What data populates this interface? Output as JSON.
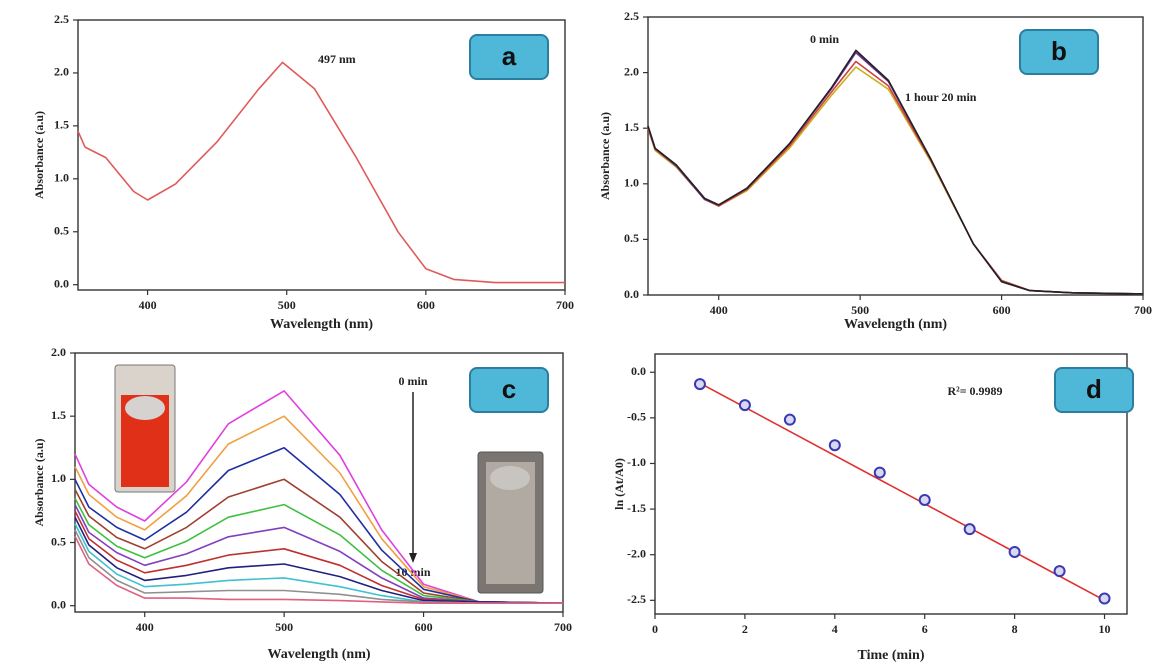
{
  "chart_data": [
    {
      "type": "line",
      "panel_label": "a",
      "x_label": "Wavelength (nm)",
      "y_label": "Absorbance (a.u)",
      "annotations": [
        "497 nm"
      ],
      "x": [
        350,
        355,
        370,
        390,
        400,
        420,
        450,
        480,
        497,
        520,
        550,
        580,
        600,
        620,
        650,
        700
      ],
      "series": [
        {
          "color": "#e05a5a",
          "values": [
            1.45,
            1.3,
            1.2,
            0.88,
            0.8,
            0.95,
            1.35,
            1.85,
            2.1,
            1.85,
            1.2,
            0.5,
            0.15,
            0.05,
            0.02,
            0.02
          ]
        }
      ],
      "xlim": [
        350,
        700
      ],
      "xticks": [
        400,
        500,
        600,
        700
      ],
      "ylim": [
        -0.05,
        2.5
      ],
      "yticks": [
        {
          "value": 0,
          "label": "0.0"
        },
        0.5,
        {
          "value": 1,
          "label": "1.0"
        },
        1.5,
        {
          "value": 2,
          "label": "2.0"
        },
        2.5
      ]
    },
    {
      "type": "line",
      "panel_label": "b",
      "x_label": "Wavelength (nm)",
      "y_label": "Absorbance (a.u)",
      "annotations": [
        "0 min",
        "1 hour 20 min"
      ],
      "x": [
        350,
        355,
        370,
        390,
        400,
        420,
        450,
        480,
        497,
        520,
        550,
        580,
        600,
        620,
        650,
        700
      ],
      "series": [
        {
          "color": "#c8b020",
          "values": [
            1.5,
            1.3,
            1.15,
            0.86,
            0.8,
            0.94,
            1.32,
            1.8,
            2.05,
            1.85,
            1.2,
            0.46,
            0.13,
            0.04,
            0.02,
            0.01
          ]
        },
        {
          "color": "#d04040",
          "values": [
            1.5,
            1.31,
            1.16,
            0.86,
            0.8,
            0.95,
            1.34,
            1.83,
            2.1,
            1.88,
            1.21,
            0.46,
            0.13,
            0.04,
            0.02,
            0.01
          ]
        },
        {
          "color": "#7030a0",
          "values": [
            1.52,
            1.32,
            1.16,
            0.86,
            0.81,
            0.96,
            1.36,
            1.86,
            2.18,
            1.92,
            1.22,
            0.46,
            0.12,
            0.04,
            0.02,
            0.01
          ]
        },
        {
          "color": "#222222",
          "values": [
            1.52,
            1.32,
            1.17,
            0.87,
            0.81,
            0.96,
            1.36,
            1.87,
            2.2,
            1.93,
            1.22,
            0.46,
            0.12,
            0.04,
            0.02,
            0.01
          ]
        }
      ],
      "xlim": [
        350,
        700
      ],
      "xticks": [
        400,
        500,
        600,
        700
      ],
      "ylim": [
        0,
        2.5
      ],
      "yticks": [
        {
          "value": 0,
          "label": "0.0"
        },
        0.5,
        {
          "value": 1,
          "label": "1.0"
        },
        1.5,
        {
          "value": 2,
          "label": "2.0"
        },
        2.5
      ]
    },
    {
      "type": "line",
      "panel_label": "c",
      "x_label": "Wavelength (nm)",
      "y_label": "Absorbance (a.u)",
      "annotations": [
        "0 min",
        "10 min"
      ],
      "x": [
        350,
        360,
        380,
        400,
        430,
        460,
        500,
        540,
        570,
        600,
        640,
        700
      ],
      "series": [
        {
          "color": "#e040e0",
          "values": [
            1.2,
            0.96,
            0.78,
            0.67,
            0.98,
            1.44,
            1.7,
            1.19,
            0.6,
            0.17,
            0.03,
            0.02
          ]
        },
        {
          "color": "#f0a040",
          "values": [
            1.1,
            0.88,
            0.7,
            0.6,
            0.87,
            1.28,
            1.5,
            1.05,
            0.53,
            0.15,
            0.03,
            0.02
          ]
        },
        {
          "color": "#2030a0",
          "values": [
            1.0,
            0.78,
            0.62,
            0.52,
            0.74,
            1.07,
            1.25,
            0.88,
            0.44,
            0.13,
            0.03,
            0.02
          ]
        },
        {
          "color": "#a04030",
          "values": [
            0.92,
            0.71,
            0.54,
            0.45,
            0.62,
            0.86,
            1.0,
            0.7,
            0.35,
            0.1,
            0.03,
            0.02
          ]
        },
        {
          "color": "#40c040",
          "values": [
            0.85,
            0.64,
            0.47,
            0.38,
            0.51,
            0.7,
            0.8,
            0.56,
            0.28,
            0.08,
            0.03,
            0.02
          ]
        },
        {
          "color": "#8040c0",
          "values": [
            0.8,
            0.58,
            0.42,
            0.32,
            0.41,
            0.545,
            0.62,
            0.43,
            0.22,
            0.06,
            0.03,
            0.02
          ]
        },
        {
          "color": "#c03030",
          "values": [
            0.75,
            0.53,
            0.36,
            0.26,
            0.32,
            0.4,
            0.45,
            0.32,
            0.16,
            0.05,
            0.03,
            0.02
          ]
        },
        {
          "color": "#202080",
          "values": [
            0.7,
            0.48,
            0.3,
            0.2,
            0.24,
            0.3,
            0.33,
            0.23,
            0.12,
            0.04,
            0.03,
            0.02
          ]
        },
        {
          "color": "#40c0d0",
          "values": [
            0.65,
            0.43,
            0.25,
            0.15,
            0.17,
            0.2,
            0.22,
            0.15,
            0.08,
            0.03,
            0.02,
            0.02
          ]
        },
        {
          "color": "#909090",
          "values": [
            0.6,
            0.38,
            0.2,
            0.1,
            0.11,
            0.12,
            0.12,
            0.09,
            0.05,
            0.03,
            0.02,
            0.02
          ]
        },
        {
          "color": "#e06080",
          "values": [
            0.55,
            0.33,
            0.16,
            0.06,
            0.06,
            0.05,
            0.05,
            0.04,
            0.03,
            0.02,
            0.02,
            0.02
          ]
        }
      ],
      "xlim": [
        350,
        700
      ],
      "xticks": [
        400,
        500,
        600,
        700
      ],
      "ylim": [
        -0.05,
        2.0
      ],
      "yticks": [
        {
          "value": 0,
          "label": "0.0"
        },
        0.5,
        {
          "value": 1,
          "label": "1.0"
        },
        1.5,
        {
          "value": 2,
          "label": "2.0"
        }
      ]
    },
    {
      "type": "scatter",
      "panel_label": "d",
      "x_label": "Time (min)",
      "y_label": "ln (At/A0)",
      "annotations": [
        "R²= 0.9989"
      ],
      "x": [
        1,
        2,
        3,
        4,
        5,
        6,
        7,
        8,
        9,
        10
      ],
      "values": [
        -0.13,
        -0.36,
        -0.52,
        -0.8,
        -1.1,
        -1.4,
        -1.72,
        -1.97,
        -2.18,
        -2.48
      ],
      "color": "#3a3ab0",
      "fit": {
        "x": [
          1,
          10
        ],
        "values": [
          -0.12,
          -2.5
        ],
        "color": "#e03030"
      },
      "xlim": [
        0,
        10.5
      ],
      "xticks": [
        0,
        2,
        4,
        6,
        8,
        10
      ],
      "ylim": [
        -2.65,
        0.2
      ],
      "yticks": [
        {
          "value": 0,
          "label": "0.0"
        },
        -0.5,
        {
          "value": -1,
          "label": "-1.0"
        },
        -1.5,
        {
          "value": -2,
          "label": "-2.0"
        },
        -2.5
      ]
    }
  ]
}
